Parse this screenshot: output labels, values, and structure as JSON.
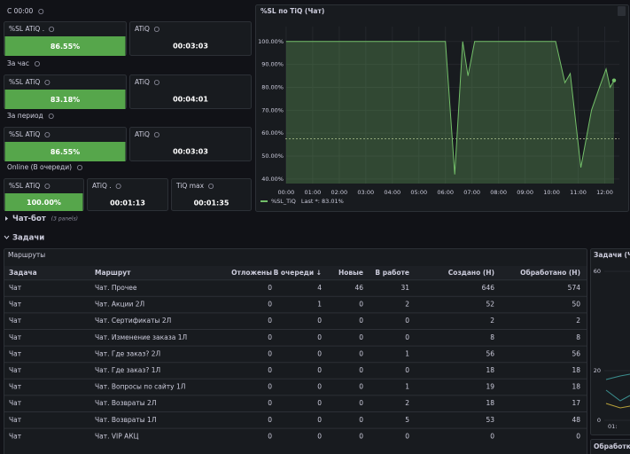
{
  "stat_groups": [
    {
      "label": "С 00:00",
      "panels": [
        {
          "title": "%SL ATiQ .",
          "value": "86.55%",
          "color": "#56a64b"
        },
        {
          "title": "ATiQ",
          "value": "00:03:03"
        }
      ]
    },
    {
      "label": "За час",
      "panels": [
        {
          "title": "%SL ATiQ",
          "value": "83.18%",
          "color": "#56a64b"
        },
        {
          "title": "ATiQ",
          "value": "00:04:01"
        }
      ]
    },
    {
      "label": "За период",
      "panels": [
        {
          "title": "%SL ATiQ",
          "value": "86.55%",
          "color": "#56a64b"
        },
        {
          "title": "ATiQ",
          "value": "00:03:03"
        }
      ]
    },
    {
      "label": "Online (В очереди)",
      "panels": [
        {
          "title": "%SL ATiQ",
          "value": "100.00%",
          "color": "#56a64b"
        },
        {
          "title": "ATiQ .",
          "value": "00:01:13"
        },
        {
          "title": "TiQ max",
          "value": "00:01:35"
        }
      ]
    }
  ],
  "chart_data": {
    "type": "line",
    "title": "%SL по TiQ (Чат)",
    "x": [
      0,
      6.0,
      6.35,
      6.65,
      6.85,
      7.1,
      10.15,
      10.5,
      10.7,
      11.1,
      11.5,
      11.8,
      12.05,
      12.2,
      12.35
    ],
    "series": [
      {
        "name": "%SL_TiQ",
        "color": "#73bf69",
        "values": [
          100,
          100,
          42,
          100,
          85,
          100,
          100,
          82,
          86,
          45,
          70,
          80,
          88,
          80,
          83
        ]
      }
    ],
    "legend_stat": "Last *: 83.01%",
    "threshold": 57.5,
    "xlim": [
      -0.03,
      12.55
    ],
    "ylim": [
      38,
      106.5
    ],
    "xticks": [
      {
        "value": 0,
        "label": "00:00"
      },
      {
        "value": 1,
        "label": "01:00"
      },
      {
        "value": 2,
        "label": "02:00"
      },
      {
        "value": 3,
        "label": "03:00"
      },
      {
        "value": 4,
        "label": "04:00"
      },
      {
        "value": 5,
        "label": "05:00"
      },
      {
        "value": 6,
        "label": "06:00"
      },
      {
        "value": 7,
        "label": "07:00"
      },
      {
        "value": 8,
        "label": "08:00"
      },
      {
        "value": 9,
        "label": "09:00"
      },
      {
        "value": 10,
        "label": "10:00"
      },
      {
        "value": 11,
        "label": "11:00"
      },
      {
        "value": 12,
        "label": "12:00"
      }
    ],
    "yticks": [
      {
        "value": 40,
        "label": "40.00%"
      },
      {
        "value": 50,
        "label": "50.00%"
      },
      {
        "value": 60,
        "label": "60.00%"
      },
      {
        "value": 70,
        "label": "70.00%"
      },
      {
        "value": 80,
        "label": "80.00%"
      },
      {
        "value": 90,
        "label": "90.00%"
      },
      {
        "value": 100,
        "label": "100.00%"
      }
    ],
    "grid": true
  },
  "row_collapsed": {
    "title": "Чат-бот",
    "note": "(3 panels)"
  },
  "row_expanded": {
    "title": "Задачи"
  },
  "table": {
    "title": "Маршруты",
    "columns": [
      "Задача",
      "Маршрут",
      "Отложены",
      "В очереди ↓",
      "Новые",
      "В работе",
      "Создано (Н)",
      "Обработано (Н)"
    ],
    "rows": [
      [
        "Чат",
        "Чат. Прочее",
        "0",
        "4",
        "46",
        "31",
        "646",
        "574"
      ],
      [
        "Чат",
        "Чат. Акции 2Л",
        "0",
        "1",
        "0",
        "2",
        "52",
        "50"
      ],
      [
        "Чат",
        "Чат. Сертификаты 2Л",
        "0",
        "0",
        "0",
        "0",
        "2",
        "2"
      ],
      [
        "Чат",
        "Чат. Изменение заказа 1Л",
        "0",
        "0",
        "0",
        "0",
        "8",
        "8"
      ],
      [
        "Чат",
        "Чат. Где заказ? 2Л",
        "0",
        "0",
        "0",
        "1",
        "56",
        "56"
      ],
      [
        "Чат",
        "Чат. Где заказ? 1Л",
        "0",
        "0",
        "0",
        "0",
        "18",
        "18"
      ],
      [
        "Чат",
        "Чат. Вопросы по сайту 1Л",
        "0",
        "0",
        "0",
        "1",
        "19",
        "18"
      ],
      [
        "Чат",
        "Чат. Возвраты 2Л",
        "0",
        "0",
        "0",
        "2",
        "18",
        "17"
      ],
      [
        "Чат",
        "Чат. Возвраты 1Л",
        "0",
        "0",
        "0",
        "5",
        "53",
        "48"
      ],
      [
        "Чат",
        "Чат. VIP АКЦ",
        "0",
        "0",
        "0",
        "0",
        "0",
        "0"
      ]
    ]
  },
  "side_panel": {
    "title": "Задачи (Ча",
    "yticks": [
      60,
      20,
      0
    ],
    "xtick": "01:"
  },
  "bottom_panel": {
    "title": "Обработка"
  }
}
